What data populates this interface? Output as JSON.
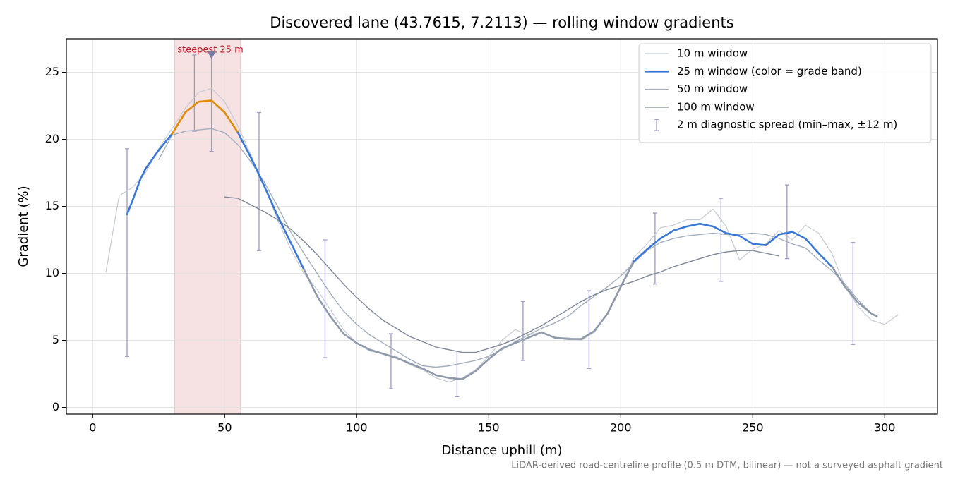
{
  "chart_data": {
    "type": "line",
    "title": "Discovered lane (43.7615, 7.2113) — rolling window gradients",
    "xlabel": "Distance uphill (m)",
    "ylabel": "Gradient (%)",
    "footnote": "LiDAR-derived road-centreline profile (0.5 m DTM, bilinear) — not a surveyed asphalt gradient",
    "xlim": [
      -10,
      320
    ],
    "ylim": [
      -0.5,
      27.5
    ],
    "xticks": [
      0,
      50,
      100,
      150,
      200,
      250,
      300
    ],
    "yticks": [
      0,
      5,
      10,
      15,
      20,
      25
    ],
    "grid": true,
    "legend": "upper right",
    "highlight": {
      "label": "steepest 25 m",
      "xrange": [
        31,
        56
      ],
      "color": "#e8b4b8",
      "label_color": "#c0202a",
      "marker": {
        "x": 45,
        "y": 26.3,
        "color": "#7e7aa8"
      }
    },
    "series": [
      {
        "name": "10 m window",
        "color": "#c5cad4",
        "width": 1.2,
        "x": [
          5,
          10,
          15,
          20,
          25,
          30,
          35,
          40,
          45,
          50,
          55,
          60,
          65,
          70,
          75,
          80,
          85,
          90,
          95,
          100,
          105,
          110,
          115,
          120,
          125,
          130,
          135,
          140,
          145,
          150,
          155,
          160,
          165,
          170,
          175,
          180,
          185,
          190,
          195,
          200,
          205,
          210,
          215,
          220,
          225,
          230,
          235,
          240,
          245,
          250,
          255,
          260,
          265,
          270,
          275,
          280,
          285,
          290,
          295,
          300,
          305
        ],
        "values": [
          10.1,
          15.8,
          16.4,
          17.5,
          19.3,
          20.8,
          22.3,
          23.5,
          23.8,
          22.8,
          21.0,
          18.8,
          16.5,
          14.0,
          11.8,
          10.0,
          8.8,
          7.3,
          5.8,
          4.8,
          4.2,
          4.0,
          3.8,
          3.2,
          2.8,
          2.2,
          1.9,
          2.2,
          2.8,
          3.8,
          5.0,
          5.8,
          5.4,
          5.6,
          5.2,
          5.2,
          5.0,
          5.6,
          7.0,
          9.0,
          11.2,
          12.2,
          13.4,
          13.6,
          14.0,
          14.0,
          14.8,
          13.5,
          11.0,
          11.8,
          12.2,
          13.2,
          12.5,
          13.6,
          13.0,
          11.5,
          9.0,
          7.5,
          6.5,
          6.2,
          6.9
        ]
      },
      {
        "name": "25 m window (color = grade band)",
        "color": "#3a78d8",
        "width": 2.6,
        "grade_bands": [
          {
            "min": 0,
            "color": "#8e99aa"
          },
          {
            "min": 10,
            "color": "#3a78d8"
          },
          {
            "min": 20,
            "color": "#e08a00"
          }
        ],
        "x": [
          13,
          15,
          18,
          20,
          25,
          30,
          35,
          40,
          45,
          50,
          55,
          60,
          65,
          70,
          75,
          80,
          85,
          90,
          95,
          100,
          105,
          110,
          115,
          120,
          125,
          130,
          135,
          140,
          145,
          150,
          155,
          160,
          165,
          170,
          175,
          180,
          185,
          190,
          195,
          200,
          205,
          210,
          215,
          220,
          225,
          230,
          235,
          240,
          245,
          250,
          255,
          260,
          265,
          270,
          275,
          280,
          285,
          290,
          295,
          297
        ],
        "values": [
          14.4,
          15.4,
          17.0,
          17.8,
          19.2,
          20.4,
          22.0,
          22.8,
          22.9,
          22.0,
          20.5,
          18.6,
          16.5,
          14.3,
          12.3,
          10.3,
          8.3,
          6.8,
          5.5,
          4.8,
          4.3,
          4.0,
          3.7,
          3.3,
          2.9,
          2.4,
          2.2,
          2.1,
          2.7,
          3.6,
          4.4,
          4.8,
          5.2,
          5.6,
          5.2,
          5.1,
          5.1,
          5.7,
          7.0,
          9.0,
          10.9,
          11.8,
          12.6,
          13.2,
          13.5,
          13.7,
          13.5,
          13.0,
          12.8,
          12.2,
          12.1,
          12.9,
          13.1,
          12.6,
          11.5,
          10.5,
          9.0,
          7.8,
          7.0,
          6.8
        ]
      },
      {
        "name": "50 m window",
        "color": "#a3aebe",
        "width": 1.4,
        "x": [
          25,
          30,
          35,
          40,
          45,
          50,
          55,
          60,
          65,
          70,
          75,
          80,
          85,
          90,
          95,
          100,
          105,
          110,
          115,
          120,
          125,
          130,
          135,
          140,
          145,
          150,
          155,
          160,
          165,
          170,
          175,
          180,
          185,
          190,
          195,
          200,
          205,
          210,
          215,
          220,
          225,
          230,
          235,
          240,
          245,
          250,
          255,
          260,
          265,
          270,
          275,
          280,
          285,
          290,
          295,
          297
        ],
        "values": [
          18.5,
          20.3,
          20.6,
          20.7,
          20.8,
          20.5,
          19.6,
          18.3,
          16.8,
          15.0,
          13.1,
          11.5,
          10.0,
          8.5,
          7.2,
          6.2,
          5.4,
          4.8,
          4.2,
          3.6,
          3.1,
          3.0,
          3.1,
          3.3,
          3.5,
          3.8,
          4.3,
          4.9,
          5.4,
          5.9,
          6.3,
          6.8,
          7.6,
          8.3,
          9.0,
          9.8,
          10.8,
          11.7,
          12.3,
          12.6,
          12.8,
          12.9,
          13.0,
          12.9,
          12.9,
          13.0,
          12.9,
          12.6,
          12.2,
          11.9,
          11.0,
          10.2,
          9.2,
          8.0,
          7.0,
          6.8
        ]
      },
      {
        "name": "100 m window",
        "color": "#7f8899",
        "width": 1.4,
        "x": [
          50,
          55,
          60,
          65,
          70,
          75,
          80,
          85,
          90,
          95,
          100,
          105,
          110,
          115,
          120,
          125,
          130,
          135,
          140,
          145,
          150,
          155,
          160,
          165,
          170,
          175,
          180,
          185,
          190,
          195,
          200,
          205,
          210,
          215,
          220,
          225,
          230,
          235,
          240,
          245,
          250,
          255,
          260
        ],
        "values": [
          15.7,
          15.6,
          15.1,
          14.6,
          14.0,
          13.3,
          12.4,
          11.4,
          10.3,
          9.2,
          8.2,
          7.3,
          6.5,
          5.9,
          5.3,
          4.9,
          4.5,
          4.3,
          4.1,
          4.1,
          4.4,
          4.7,
          5.1,
          5.6,
          6.1,
          6.7,
          7.3,
          7.9,
          8.4,
          8.8,
          9.1,
          9.4,
          9.8,
          10.1,
          10.5,
          10.8,
          11.1,
          11.4,
          11.6,
          11.7,
          11.7,
          11.5,
          11.3
        ]
      }
    ],
    "spread": {
      "name": "2 m diagnostic spread (min–max, ±12 m)",
      "color": "#9b9ac4",
      "x": [
        13,
        38.5,
        45,
        63,
        88,
        113,
        138,
        163,
        188,
        213,
        238,
        263,
        288
      ],
      "min": [
        3.8,
        20.6,
        19.1,
        11.7,
        3.7,
        1.4,
        0.8,
        3.5,
        2.9,
        9.2,
        9.4,
        11.1,
        4.7
      ],
      "max": [
        19.3,
        26.3,
        26.3,
        22.0,
        12.5,
        5.5,
        4.2,
        7.9,
        8.7,
        14.5,
        15.6,
        16.6,
        12.3
      ]
    }
  }
}
